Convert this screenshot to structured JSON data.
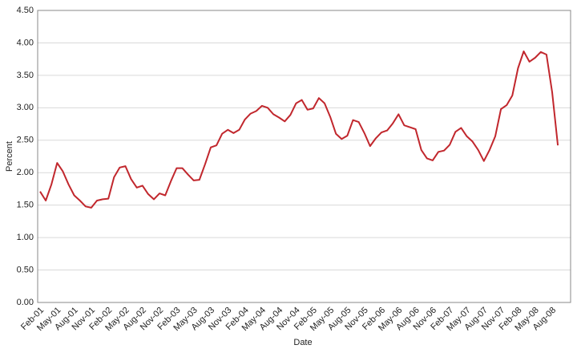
{
  "chart_data": {
    "type": "line",
    "x_label": "Date",
    "y_label": "Percent",
    "categories": [
      "Feb-01",
      null,
      null,
      "May-01",
      null,
      null,
      "Aug-01",
      null,
      null,
      "Nov-01",
      null,
      null,
      "Feb-02",
      null,
      null,
      "May-02",
      null,
      null,
      "Aug-02",
      null,
      null,
      "Nov-02",
      null,
      null,
      "Feb-03",
      null,
      null,
      "May-03",
      null,
      null,
      "Aug-03",
      null,
      null,
      "Nov-03",
      null,
      null,
      "Feb-04",
      null,
      null,
      "May-04",
      null,
      null,
      "Aug-04",
      null,
      null,
      "Nov-04",
      null,
      null,
      "Feb-05",
      null,
      null,
      "May-05",
      null,
      null,
      "Aug-05",
      null,
      null,
      "Nov-05",
      null,
      null,
      "Feb-06",
      null,
      null,
      "May-06",
      null,
      null,
      "Aug-06",
      null,
      null,
      "Nov-06",
      null,
      null,
      "Feb-07",
      null,
      null,
      "May-07",
      null,
      null,
      "Aug-07",
      null,
      null,
      "Nov-07",
      null,
      null,
      "Feb-08",
      null,
      null,
      "May-08",
      null,
      null,
      "Aug-08",
      null
    ],
    "series": [
      {
        "name": "Percent",
        "color": "#c1272d",
        "values": [
          1.71,
          1.57,
          1.82,
          2.15,
          2.02,
          1.82,
          1.65,
          1.57,
          1.48,
          1.46,
          1.57,
          1.59,
          1.6,
          1.93,
          2.08,
          2.1,
          1.9,
          1.77,
          1.8,
          1.67,
          1.59,
          1.68,
          1.65,
          1.87,
          2.07,
          2.07,
          1.97,
          1.88,
          1.89,
          2.13,
          2.39,
          2.42,
          2.6,
          2.66,
          2.61,
          2.66,
          2.82,
          2.91,
          2.95,
          3.03,
          3.0,
          2.9,
          2.85,
          2.79,
          2.89,
          3.07,
          3.12,
          2.97,
          2.99,
          3.15,
          3.07,
          2.86,
          2.6,
          2.52,
          2.57,
          2.81,
          2.78,
          2.61,
          2.41,
          2.53,
          2.62,
          2.65,
          2.76,
          2.9,
          2.73,
          2.7,
          2.67,
          2.35,
          2.22,
          2.19,
          2.32,
          2.34,
          2.43,
          2.63,
          2.69,
          2.56,
          2.48,
          2.35,
          2.18,
          2.35,
          2.56,
          2.98,
          3.04,
          3.19,
          3.61,
          3.87,
          3.71,
          3.77,
          3.86,
          3.82,
          3.24,
          2.42
        ]
      }
    ],
    "ylim": [
      0,
      4.5
    ],
    "yticks": [
      {
        "value": 0,
        "label": "0.00"
      },
      {
        "value": 0.5,
        "label": "0.50"
      },
      {
        "value": 1,
        "label": "1.00"
      },
      {
        "value": 1.5,
        "label": "1.50"
      },
      {
        "value": 2,
        "label": "2.00"
      },
      {
        "value": 2.5,
        "label": "2.50"
      },
      {
        "value": 3,
        "label": "3.00"
      },
      {
        "value": 3.5,
        "label": "3.50"
      },
      {
        "value": 4,
        "label": "4.00"
      },
      {
        "value": 4.5,
        "label": "4.50"
      }
    ],
    "grid": true
  }
}
